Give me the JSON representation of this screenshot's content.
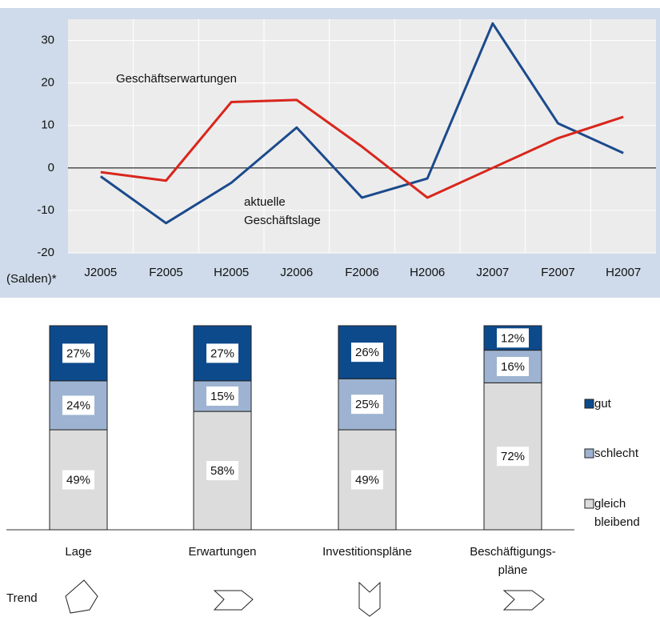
{
  "charts": [
    {
      "type": "line",
      "categories": [
        "J2005",
        "F2005",
        "H2005",
        "J2006",
        "F2006",
        "H2006",
        "J2007",
        "F2007",
        "H2007"
      ],
      "series": [
        {
          "name": "aktuelle Geschäftslage",
          "color": "#1b4a8c",
          "values": [
            -2,
            -13,
            -3.5,
            9.5,
            -7,
            -2.5,
            34,
            10.5,
            3.5
          ]
        },
        {
          "name": "Geschäftserwartungen",
          "color": "#d9261c",
          "values": [
            -1,
            -3,
            15.5,
            16,
            5,
            -7,
            0,
            7,
            12
          ]
        }
      ],
      "ylim": [
        -20,
        35
      ],
      "yticks": [
        -20,
        -10,
        0,
        10,
        20,
        30
      ],
      "y_axis_label": "(Salden)*",
      "grid": true
    },
    {
      "type": "stacked_bar",
      "categories": [
        "Lage",
        "Erwartungen",
        "Investitionspläne",
        "Beschäftigungs-pläne"
      ],
      "series": [
        {
          "name": "gleich bleibend",
          "color": "#dcdcdc",
          "values": [
            49,
            58,
            49,
            72
          ],
          "value_labels": [
            "49%",
            "58%",
            "49%",
            "72%"
          ]
        },
        {
          "name": "schlecht",
          "color": "#9db3d1",
          "values": [
            24,
            15,
            25,
            16
          ],
          "value_labels": [
            "24%",
            "15%",
            "25%",
            "16%"
          ]
        },
        {
          "name": "gut",
          "color": "#0d4a8c",
          "values": [
            27,
            27,
            26,
            12
          ],
          "value_labels": [
            "27%",
            "27%",
            "26%",
            "12%"
          ]
        }
      ],
      "ylim": [
        0,
        100
      ],
      "trend_label": "Trend"
    }
  ]
}
